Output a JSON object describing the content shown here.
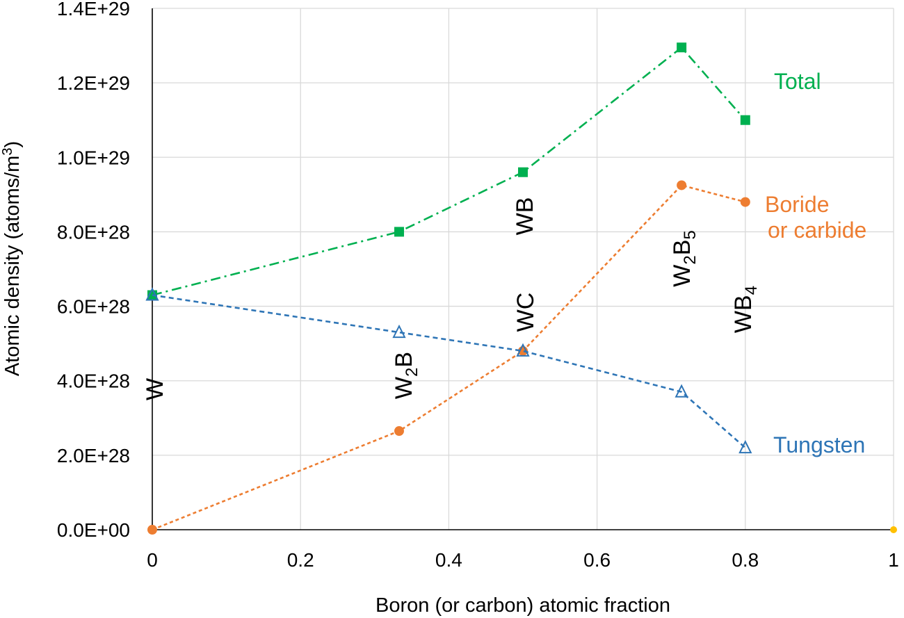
{
  "chart_data": {
    "type": "line",
    "title": "",
    "xlabel": "Boron (or carbon) atomic fraction",
    "ylabel": "Atomic density (atoms/m³)",
    "xlim": [
      0,
      1
    ],
    "ylim": [
      0,
      1.4e+29
    ],
    "x_ticks": [
      0,
      0.2,
      0.4,
      0.6,
      0.8,
      1
    ],
    "x_tick_labels": [
      "0",
      "0.2",
      "0.4",
      "0.6",
      "0.8",
      "1"
    ],
    "y_ticks": [
      0,
      2e+28,
      4e+28,
      6e+28,
      8e+28,
      1e+29,
      1.2e+29,
      1.4e+29
    ],
    "y_tick_labels": [
      "0.0E+00",
      "2.0E+28",
      "4.0E+28",
      "6.0E+28",
      "8.0E+28",
      "1.0E+29",
      "1.2E+29",
      "1.4E+29"
    ],
    "grid": true,
    "series": [
      {
        "name": "Total",
        "color": "#00b050",
        "marker": "square",
        "line_style": "dash-dot",
        "x": [
          0,
          0.333,
          0.5,
          0.714,
          0.8
        ],
        "y": [
          6.3e+28,
          8e+28,
          9.6e+28,
          1.295e+29,
          1.1e+29
        ]
      },
      {
        "name": "Boride or carbide",
        "color": "#ed7d31",
        "marker": "circle",
        "line_style": "dotted",
        "x": [
          0,
          0.333,
          0.5,
          0.714,
          0.8
        ],
        "y": [
          0,
          2.65e+28,
          4.8e+28,
          9.25e+28,
          8.8e+28
        ]
      },
      {
        "name": "Tungsten",
        "color": "#2e75b6",
        "marker": "triangle-open",
        "line_style": "dashed",
        "x": [
          0,
          0.333,
          0.5,
          0.714,
          0.8
        ],
        "y": [
          6.3e+28,
          5.3e+28,
          4.8e+28,
          3.7e+28,
          2.2e+28
        ]
      }
    ],
    "series_labels": [
      {
        "text": "Total",
        "color": "#00b050"
      },
      {
        "text": "Boride",
        "color": "#ed7d31"
      },
      {
        "text": "or carbide",
        "color": "#ed7d31"
      },
      {
        "text": "Tungsten",
        "color": "#2e75b6"
      }
    ],
    "compound_labels": [
      {
        "base": "W",
        "sub": "",
        "tail": ""
      },
      {
        "base": "W",
        "sub": "2",
        "tail": "B"
      },
      {
        "base": "WC",
        "sub": "",
        "tail": ""
      },
      {
        "base": "WB",
        "sub": "",
        "tail": ""
      },
      {
        "base": "W",
        "sub": "2",
        "tail": "B",
        "sub2": "5"
      },
      {
        "base": "WB",
        "sub": "4",
        "tail": ""
      }
    ],
    "extra_point": {
      "x": 1,
      "y": 0,
      "color": "#ffc000"
    }
  }
}
